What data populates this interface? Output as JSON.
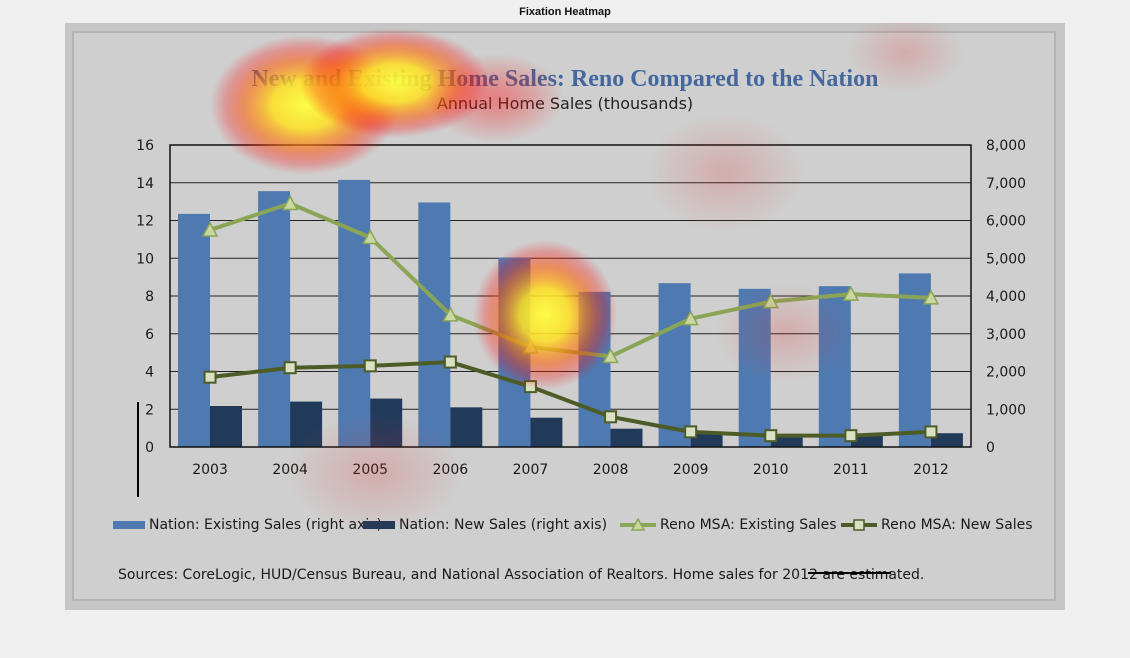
{
  "figure": {
    "title": "Fixation Heatmap"
  },
  "chart_data": {
    "type": "bar",
    "title": "New and Existing Home Sales: Reno Compared to the Nation",
    "subtitle": "Annual Home Sales (thousands)",
    "categories": [
      "2003",
      "2004",
      "2005",
      "2006",
      "2007",
      "2008",
      "2009",
      "2010",
      "2011",
      "2012"
    ],
    "left_axis": {
      "min": 0,
      "max": 16,
      "ticks": [
        "0",
        "2",
        "4",
        "6",
        "8",
        "10",
        "12",
        "14",
        "16"
      ]
    },
    "right_axis": {
      "min": 0,
      "max": 8000,
      "ticks": [
        "0",
        "1,000",
        "2,000",
        "3,000",
        "4,000",
        "5,000",
        "6,000",
        "7,000",
        "8,000"
      ]
    },
    "grid": true,
    "series": [
      {
        "name": "Nation: Existing Sales (right axis)",
        "kind": "bar",
        "axis": "right",
        "color": "#4f7ab1",
        "values": [
          6175,
          6778,
          7076,
          6478,
          5020,
          4110,
          4340,
          4190,
          4260,
          4600
        ]
      },
      {
        "name": "Nation: New Sales (right axis)",
        "kind": "bar",
        "axis": "right",
        "color": "#223a5a",
        "values": [
          1086,
          1203,
          1283,
          1051,
          776,
          485,
          375,
          323,
          306,
          365
        ]
      },
      {
        "name": "Reno MSA: Existing Sales",
        "kind": "line",
        "axis": "left",
        "color": "#8aa556",
        "marker": "triangle",
        "values": [
          11.5,
          12.9,
          11.1,
          7.0,
          5.3,
          4.8,
          6.8,
          7.7,
          8.1,
          7.9
        ]
      },
      {
        "name": "Reno MSA: New Sales",
        "kind": "line",
        "axis": "left",
        "color": "#4d5c26",
        "marker": "square",
        "values": [
          3.7,
          4.2,
          4.3,
          4.5,
          3.2,
          1.6,
          0.8,
          0.6,
          0.6,
          0.8
        ]
      }
    ],
    "legend_position": "bottom",
    "sources": "Sources: CoreLogic, HUD/Census  Bureau, and National Association of Realtors. Home sales for 2012 are estimated."
  }
}
